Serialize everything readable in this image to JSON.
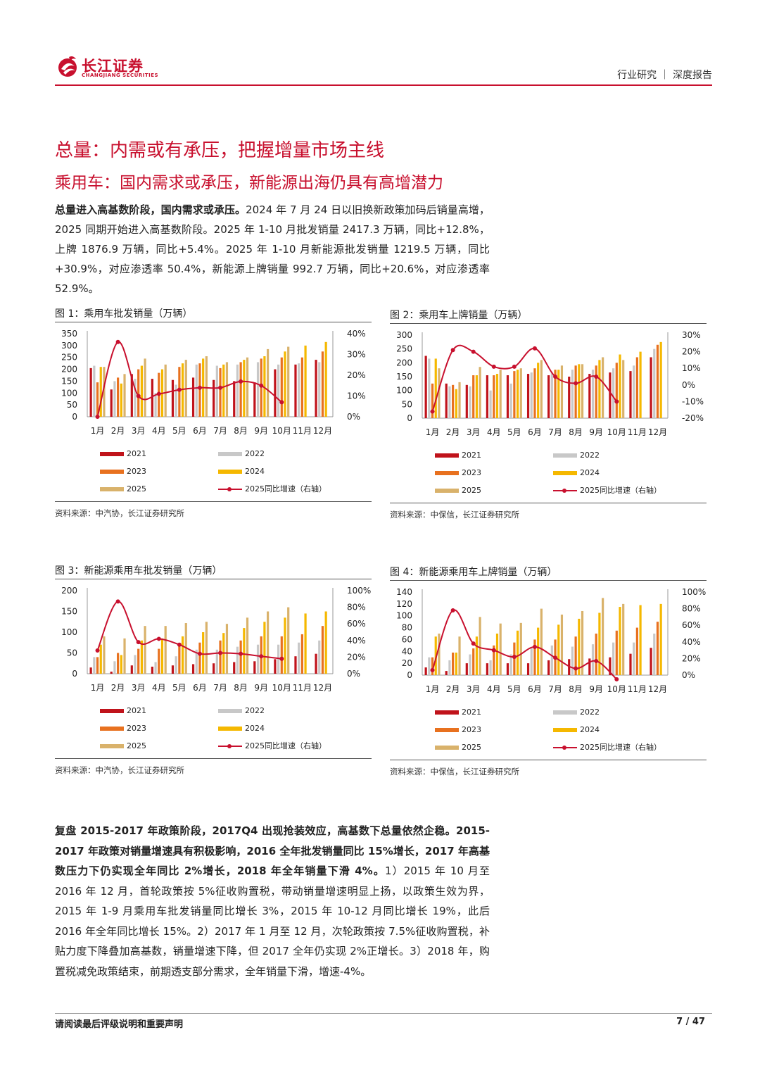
{
  "header": {
    "logo_cn": "长江证券",
    "logo_en": "CHANGJIANG SECURITIES",
    "right": "行业研究 ｜ 深度报告"
  },
  "colors": {
    "brand": "#c8102e",
    "s2021": "#c0131b",
    "s2022": "#c8c8c8",
    "s2023": "#e8711f",
    "s2024": "#f5b800",
    "s2025": "#d9b26b",
    "line": "#c8102e"
  },
  "title1": "总量：内需或有承压，把握增量市场主线",
  "title2": "乘用车：国内需求或承压，新能源出海仍具有高增潜力",
  "para1": {
    "lead": "总量进入高基数阶段，国内需求或承压。",
    "text": "2024 年 7 月 24 日以旧换新政策加码后销量高增，2025 同期开始进入高基数阶段。2025 年 1-10 月批发销量 2417.3 万辆，同比+12.8%，上牌 1876.9 万辆，同比+5.4%。2025 年 1-10 月新能源批发销量 1219.5 万辆，同比+30.9%，对应渗透率 50.4%，新能源上牌销量 992.7 万辆，同比+20.6%，对应渗透率 52.9%。"
  },
  "legend_labels": [
    "2021",
    "2022",
    "2023",
    "2024",
    "2025",
    "2025同比增速（右轴）"
  ],
  "figures": [
    {
      "title": "图 1：乘用车批发销量（万辆）",
      "source": "资料来源：中汽协，长江证券研究所"
    },
    {
      "title": "图 2：乘用车上牌销量（万辆）",
      "source": "资料来源：中保信，长江证券研究所"
    },
    {
      "title": "图 3：新能源乘用车批发销量（万辆）",
      "source": "资料来源：中汽协，长江证券研究所"
    },
    {
      "title": "图 4：新能源乘用车上牌销量（万辆）",
      "source": "资料来源：中保信，长江证券研究所"
    }
  ],
  "chart_data": [
    {
      "type": "bar",
      "categories": [
        "1月",
        "2月",
        "3月",
        "4月",
        "5月",
        "6月",
        "7月",
        "8月",
        "9月",
        "10月",
        "11月",
        "12月"
      ],
      "y_ticks": [
        "350",
        "300",
        "250",
        "200",
        "150",
        "100",
        "50",
        "0"
      ],
      "y2_ticks": [
        "40%",
        "30%",
        "20%",
        "10%",
        "0%"
      ],
      "ylim": [
        0,
        350
      ],
      "y2lim": [
        0,
        40
      ],
      "series": [
        {
          "name": "2021",
          "values": [
            205,
            115,
            180,
            160,
            155,
            165,
            155,
            150,
            145,
            200,
            220,
            240
          ]
        },
        {
          "name": "2022",
          "values": [
            215,
            150,
            160,
            100,
            135,
            220,
            215,
            220,
            230,
            220,
            225,
            230
          ]
        },
        {
          "name": "2023",
          "values": [
            145,
            165,
            200,
            185,
            210,
            225,
            205,
            230,
            245,
            250,
            250,
            275
          ]
        },
        {
          "name": "2024",
          "values": [
            210,
            140,
            215,
            200,
            225,
            245,
            220,
            240,
            255,
            275,
            300,
            315
          ]
        },
        {
          "name": "2025",
          "values": [
            210,
            180,
            245,
            220,
            240,
            255,
            230,
            250,
            285,
            295,
            null,
            null
          ]
        },
        {
          "name": "2025同比增速（右轴）",
          "axis": "right",
          "values": [
            0,
            36,
            10,
            11,
            13,
            14,
            14,
            17,
            15,
            7,
            null,
            null
          ]
        }
      ]
    },
    {
      "type": "bar",
      "categories": [
        "1月",
        "2月",
        "3月",
        "4月",
        "5月",
        "6月",
        "7月",
        "8月",
        "9月",
        "10月",
        "11月",
        "12月"
      ],
      "y_ticks": [
        "300",
        "250",
        "200",
        "150",
        "100",
        "50",
        "0"
      ],
      "y2_ticks": [
        "30%",
        "20%",
        "10%",
        "0%",
        "-10%",
        "-20%"
      ],
      "ylim": [
        0,
        300
      ],
      "y2lim": [
        -20,
        30
      ],
      "series": [
        {
          "name": "2021",
          "values": [
            225,
            125,
            120,
            155,
            155,
            160,
            155,
            150,
            160,
            165,
            170,
            220
          ]
        },
        {
          "name": "2022",
          "values": [
            215,
            115,
            115,
            100,
            125,
            165,
            165,
            175,
            175,
            180,
            190,
            250
          ]
        },
        {
          "name": "2023",
          "values": [
            125,
            120,
            155,
            155,
            170,
            180,
            175,
            190,
            190,
            200,
            220,
            265
          ]
        },
        {
          "name": "2024",
          "values": [
            215,
            105,
            155,
            160,
            175,
            200,
            175,
            195,
            210,
            230,
            240,
            275
          ]
        },
        {
          "name": "2025",
          "values": [
            180,
            130,
            185,
            175,
            180,
            210,
            190,
            195,
            220,
            210,
            null,
            null
          ]
        },
        {
          "name": "2025同比增速（右轴）",
          "axis": "right",
          "values": [
            -16,
            21,
            20,
            11,
            11,
            22,
            5,
            1,
            5,
            -10,
            null,
            null
          ]
        }
      ]
    },
    {
      "type": "bar",
      "categories": [
        "1月",
        "2月",
        "3月",
        "4月",
        "5月",
        "6月",
        "7月",
        "8月",
        "9月",
        "10月",
        "11月",
        "12月"
      ],
      "y_ticks": [
        "200",
        "150",
        "100",
        "50",
        "0"
      ],
      "y2_ticks": [
        "100%",
        "80%",
        "60%",
        "40%",
        "20%",
        "0%"
      ],
      "ylim": [
        0,
        200
      ],
      "y2lim": [
        0,
        100
      ],
      "series": [
        {
          "name": "2021",
          "values": [
            15,
            5,
            20,
            17,
            20,
            23,
            25,
            28,
            30,
            35,
            42,
            48
          ]
        },
        {
          "name": "2022",
          "values": [
            40,
            30,
            45,
            28,
            42,
            58,
            58,
            65,
            70,
            70,
            75,
            80
          ]
        },
        {
          "name": "2023",
          "values": [
            40,
            50,
            60,
            60,
            70,
            75,
            80,
            80,
            90,
            90,
            95,
            115
          ]
        },
        {
          "name": "2024",
          "values": [
            70,
            45,
            80,
            85,
            90,
            100,
            98,
            110,
            125,
            135,
            145,
            150
          ]
        },
        {
          "name": "2025",
          "values": [
            90,
            85,
            115,
            115,
            122,
            125,
            120,
            135,
            150,
            160,
            null,
            null
          ]
        },
        {
          "name": "2025同比增速（右轴）",
          "axis": "right",
          "values": [
            28,
            87,
            38,
            42,
            35,
            24,
            25,
            24,
            21,
            18,
            null,
            null
          ]
        }
      ]
    },
    {
      "type": "bar",
      "categories": [
        "1月",
        "2月",
        "3月",
        "4月",
        "5月",
        "6月",
        "7月",
        "8月",
        "9月",
        "10月",
        "11月",
        "12月"
      ],
      "y_ticks": [
        "140",
        "120",
        "100",
        "80",
        "60",
        "40",
        "20",
        "0"
      ],
      "y2_ticks": [
        "100%",
        "80%",
        "60%",
        "40%",
        "20%",
        "0%"
      ],
      "ylim": [
        0,
        140
      ],
      "y2lim": [
        0,
        100
      ],
      "series": [
        {
          "name": "2021",
          "values": [
            13,
            7,
            20,
            20,
            20,
            20,
            25,
            27,
            28,
            30,
            36,
            46
          ]
        },
        {
          "name": "2022",
          "values": [
            30,
            25,
            35,
            25,
            35,
            45,
            50,
            48,
            52,
            55,
            55,
            70
          ]
        },
        {
          "name": "2023",
          "values": [
            30,
            38,
            45,
            50,
            55,
            60,
            60,
            65,
            70,
            75,
            80,
            90
          ]
        },
        {
          "name": "2024",
          "values": [
            65,
            38,
            65,
            70,
            75,
            80,
            85,
            95,
            105,
            115,
            118,
            120
          ]
        },
        {
          "name": "2025",
          "values": [
            70,
            65,
            98,
            87,
            88,
            112,
            102,
            108,
            130,
            120,
            null,
            null
          ]
        },
        {
          "name": "2025同比增速（右轴）",
          "axis": "right",
          "values": [
            6,
            78,
            38,
            30,
            22,
            34,
            21,
            8,
            17,
            -5,
            null,
            null
          ]
        }
      ]
    }
  ],
  "para2": {
    "lead": "复盘 2015-2017 年政策阶段，2017Q4 出现抢装效应，高基数下总量依然企稳。2015-2017 年政策对销量增速具有积极影响，2016 全年批发销量同比 15%增长，2017 年高基数压力下仍实现全年同比 2%增长，2018 年全年销量下滑 4%。",
    "text": "1）2015 年 10 月至 2016 年 12 月，首轮政策按 5%征收购置税，带动销量增速明显上扬，以政策生效为界，2015 年 1-9 月乘用车批发销量同比增长 3%，2015 年 10-12 月同比增长 19%，此后 2016 年全年同比增长 15%。2）2017 年 1 月至 12 月，次轮政策按 7.5%征收购置税，补贴力度下降叠加高基数，销量增速下降，但 2017 全年仍实现 2%正增长。3）2018 年，购置税减免政策结束，前期透支部分需求，全年销量下滑，增速-4%。"
  },
  "footer": {
    "left": "请阅读最后评级说明和重要声明",
    "right": "7 / 47"
  }
}
